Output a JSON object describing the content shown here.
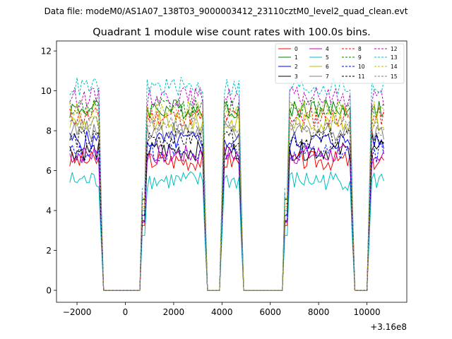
{
  "figure": {
    "suptitle": "Data file: modeM0/AS1A07_138T03_9000003412_23110cztM0_level2_quad_clean.evt"
  },
  "chart_data": {
    "type": "line",
    "title": "Quadrant 1 module wise count rates with 100.0s bins.",
    "xlabel": "",
    "ylabel": "",
    "x_offset_label": "+3.16e8",
    "xlim": [
      -2850,
      11650
    ],
    "ylim": [
      -0.6,
      12.5
    ],
    "xticks": [
      -2000,
      0,
      2000,
      4000,
      6000,
      8000,
      10000
    ],
    "xtick_labels": [
      "−2000",
      "0",
      "2000",
      "4000",
      "6000",
      "8000",
      "10000"
    ],
    "yticks": [
      0,
      2,
      4,
      6,
      8,
      10,
      12
    ],
    "ytick_labels": [
      "0",
      "2",
      "4",
      "6",
      "8",
      "10",
      "12"
    ],
    "legend_location": "upper right",
    "segments": [
      {
        "start": -2300,
        "end": -1000
      },
      {
        "start": 700,
        "end": 3350
      },
      {
        "start": 3950,
        "end": 4850
      },
      {
        "start": 6600,
        "end": 9450
      },
      {
        "start": 10050,
        "end": 10750
      }
    ],
    "series": [
      {
        "name": "0",
        "color": "#ff0000",
        "style": "solid",
        "level": 6.5
      },
      {
        "name": "1",
        "color": "#008000",
        "style": "solid",
        "level": 9.1
      },
      {
        "name": "2",
        "color": "#0000ff",
        "style": "solid",
        "level": 7.5
      },
      {
        "name": "3",
        "color": "#000000",
        "style": "solid",
        "level": 7.0
      },
      {
        "name": "4",
        "color": "#bf00bf",
        "style": "solid",
        "level": 6.8
      },
      {
        "name": "5",
        "color": "#00bfbf",
        "style": "solid",
        "level": 5.5
      },
      {
        "name": "6",
        "color": "#bfbf00",
        "style": "solid",
        "level": 8.4
      },
      {
        "name": "7",
        "color": "#808080",
        "style": "solid",
        "level": 8.0
      },
      {
        "name": "8",
        "color": "#ff0000",
        "style": "dashed",
        "level": 8.7
      },
      {
        "name": "9",
        "color": "#008000",
        "style": "dashed",
        "level": 9.2
      },
      {
        "name": "10",
        "color": "#0000ff",
        "style": "dashed",
        "level": 6.9
      },
      {
        "name": "11",
        "color": "#000000",
        "style": "dashed",
        "level": 7.6
      },
      {
        "name": "12",
        "color": "#bf00bf",
        "style": "dashed",
        "level": 9.7
      },
      {
        "name": "13",
        "color": "#00bfbf",
        "style": "dashed",
        "level": 10.2
      },
      {
        "name": "14",
        "color": "#bfbf00",
        "style": "dashed",
        "level": 9.0
      },
      {
        "name": "15",
        "color": "#808080",
        "style": "dashed",
        "level": 8.2
      }
    ]
  }
}
